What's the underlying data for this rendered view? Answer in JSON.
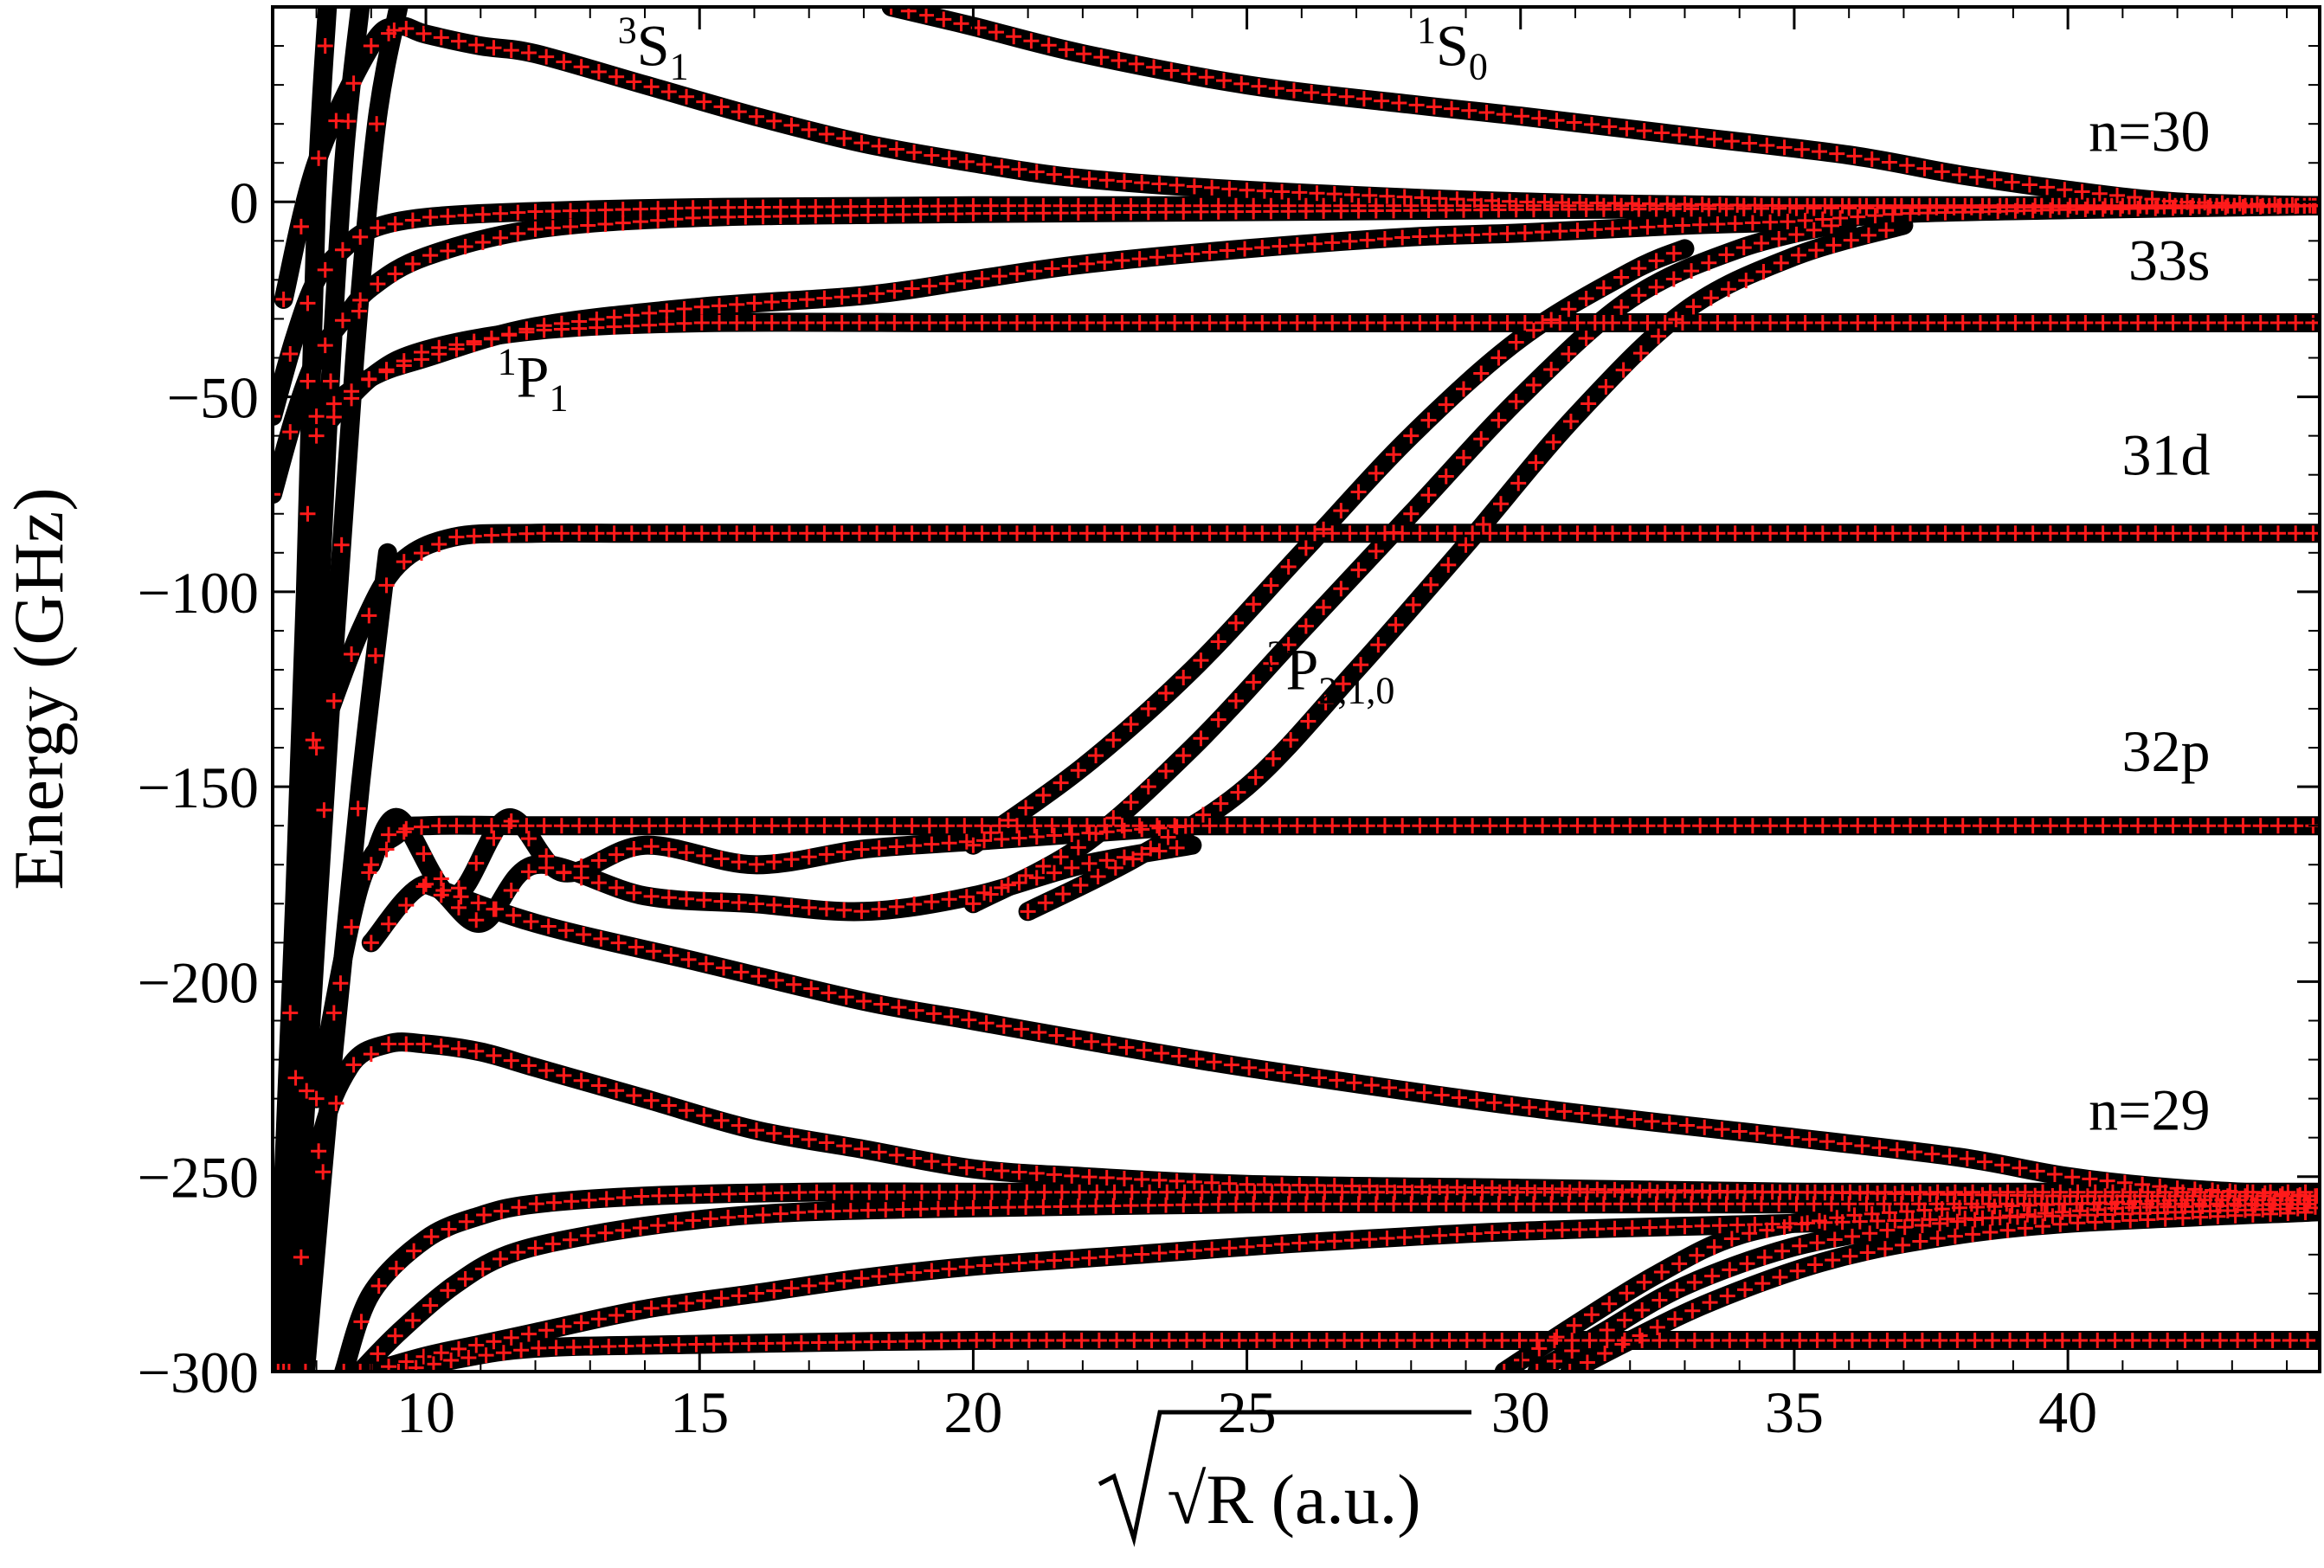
{
  "chart_data": {
    "type": "line",
    "xlabel": "√R (a.u.)",
    "ylabel": "Energy (GHz)",
    "xlim": [
      7.2,
      44.6
    ],
    "ylim": [
      -300,
      50
    ],
    "xticks": [
      10,
      15,
      20,
      25,
      30,
      35,
      40
    ],
    "yticks": [
      0,
      -50,
      -100,
      -150,
      -200,
      -250,
      -300
    ],
    "xtick_labels": [
      "10",
      "15",
      "20",
      "25",
      "30",
      "35",
      "40"
    ],
    "ytick_labels": [
      "0",
      "−50",
      "−100",
      "−150",
      "−200",
      "−250",
      "−300"
    ],
    "grid": false,
    "legend": "none",
    "colors": {
      "curve": "#000000",
      "marker": "#ff1a1a"
    },
    "annotations": [
      {
        "id": "3S1",
        "sup": "3",
        "main": "S",
        "sub": "1",
        "x": 14.8,
        "y": 35
      },
      {
        "id": "1S0",
        "sup": "1",
        "main": "S",
        "sub": "0",
        "x": 29.4,
        "y": 35
      },
      {
        "id": "1P1",
        "sup": "1",
        "main": "P",
        "sub": "1",
        "x": 12.6,
        "y": -50
      },
      {
        "id": "3P210",
        "sup": "3",
        "main": "P",
        "sub": "2,1,0",
        "x": 27.7,
        "y": -125
      },
      {
        "id": "n30",
        "main": "n=30",
        "x": 42.6,
        "y": 13
      },
      {
        "id": "33s",
        "main": "33s",
        "x": 42.6,
        "y": -20
      },
      {
        "id": "31d",
        "main": "31d",
        "x": 42.6,
        "y": -70
      },
      {
        "id": "32p",
        "main": "32p",
        "x": 42.6,
        "y": -146
      },
      {
        "id": "n29",
        "main": "n=29",
        "x": 42.6,
        "y": -238
      }
    ],
    "series": [
      {
        "x": [
          7.2,
          7.6,
          8.0,
          8.5,
          9.0,
          10.0,
          12.0,
          15.0,
          20.0,
          30.0,
          44.6
        ],
        "y": [
          -55,
          -35,
          -20,
          -12,
          -7,
          -4,
          -2.5,
          -1.5,
          -1,
          -1,
          -1
        ]
      },
      {
        "x": [
          7.2,
          7.6,
          8.0,
          8.5,
          9.0,
          10.0,
          12.0,
          15.0,
          20.0,
          30.0,
          44.6
        ],
        "y": [
          -75,
          -55,
          -40,
          -30,
          -22,
          -14,
          -7,
          -4,
          -3,
          -2,
          -1
        ]
      },
      {
        "x": [
          7.4,
          8.0,
          9.0,
          9.5,
          10.0,
          11.0,
          12.0,
          14.0,
          16.0,
          18.0,
          20.0,
          22.0,
          25.0,
          30.0,
          35.0,
          40.0,
          44.6
        ],
        "y": [
          -25,
          10,
          40,
          45,
          43,
          40,
          38,
          30,
          22,
          15,
          10,
          6,
          3,
          0,
          -1,
          -1,
          -1
        ]
      },
      {
        "x": [
          18.5,
          20.0,
          22.0,
          25.0,
          28.0,
          30.0,
          33.0,
          36.0,
          38.0,
          40.0,
          42.0,
          44.6
        ],
        "y": [
          50,
          45,
          38,
          30,
          25,
          22,
          17,
          12,
          7,
          3,
          0,
          -1
        ]
      },
      {
        "x": [
          8.0,
          9.0,
          10.0,
          12.0,
          15.0,
          18.0,
          20.0,
          22.0,
          25.0,
          28.0,
          30.0,
          33.0,
          35.0,
          37.0,
          40.0,
          44.6
        ],
        "y": [
          -55,
          -45,
          -40,
          -32,
          -27,
          -24,
          -20,
          -16,
          -12,
          -9,
          -8,
          -6,
          -5,
          -3,
          -2,
          -1
        ]
      },
      {
        "x": [
          8.0,
          9.0,
          10.0,
          12.0,
          15.0,
          20.0,
          25.0,
          30.0,
          35.0,
          40.0,
          44.6
        ],
        "y": [
          -60,
          -45,
          -38,
          -33,
          -31,
          -31,
          -31,
          -31,
          -31,
          -31,
          -31
        ]
      },
      {
        "x": [
          8.0,
          8.8,
          9.5,
          10.5,
          12.0,
          14.0,
          17.0,
          20.0,
          25.0,
          30.0,
          35.0,
          40.0,
          44.6
        ],
        "y": [
          -140,
          -110,
          -93,
          -86,
          -85,
          -85,
          -85,
          -85,
          -85,
          -85,
          -85,
          -85,
          -85
        ]
      },
      {
        "x": [
          20.0,
          22.0,
          24.0,
          26.0,
          28.0,
          30.0,
          32.0,
          33.0
        ],
        "y": [
          -165,
          -145,
          -120,
          -90,
          -60,
          -35,
          -18,
          -12
        ]
      },
      {
        "x": [
          20.0,
          22.0,
          24.0,
          26.0,
          28.0,
          30.0,
          32.0,
          34.0,
          36.0
        ],
        "y": [
          -180,
          -165,
          -140,
          -110,
          -80,
          -50,
          -25,
          -12,
          -5
        ]
      },
      {
        "x": [
          21.0,
          23.0,
          25.0,
          27.0,
          29.0,
          31.0,
          33.0,
          35.0,
          37.0
        ],
        "y": [
          -182,
          -168,
          -150,
          -120,
          -88,
          -55,
          -28,
          -14,
          -6
        ]
      },
      {
        "x": [
          8.0,
          8.8,
          9.5,
          10.0,
          12.0,
          15.0,
          20.0,
          25.0,
          30.0,
          35.0,
          40.0,
          44.6
        ],
        "y": [
          -230,
          -175,
          -162,
          -160,
          -160,
          -160,
          -160,
          -160,
          -160,
          -160,
          -160,
          -160
        ]
      },
      {
        "x": [
          9.0,
          9.5,
          10.5,
          11.5,
          12.5,
          14.0,
          16.0,
          18.0,
          20.0,
          22.0,
          24.0
        ],
        "y": [
          -170,
          -158,
          -178,
          -158,
          -172,
          -165,
          -170,
          -166,
          -164,
          -162,
          -160
        ]
      },
      {
        "x": [
          9.0,
          10.0,
          11.0,
          12.0,
          14.0,
          16.0,
          18.0,
          20.0,
          22.0,
          24.0
        ],
        "y": [
          -190,
          -175,
          -185,
          -170,
          -178,
          -180,
          -182,
          -178,
          -170,
          -165
        ]
      },
      {
        "x": [
          10.0,
          12.0,
          15.0,
          18.0,
          20.0,
          22.0,
          25.0,
          30.0,
          35.0,
          38.0,
          40.0,
          42.0,
          44.6
        ],
        "y": [
          -175,
          -185,
          -195,
          -205,
          -210,
          -215,
          -222,
          -232,
          -240,
          -245,
          -250,
          -253,
          -255
        ]
      },
      {
        "x": [
          7.4,
          8.0,
          8.6,
          9.3,
          10.0,
          11.0,
          12.0,
          14.0,
          16.0,
          18.0,
          20.0,
          22.0,
          25.0,
          30.0,
          35.0,
          40.0,
          44.6
        ],
        "y": [
          -300,
          -245,
          -222,
          -216,
          -216,
          -218,
          -222,
          -230,
          -238,
          -243,
          -248,
          -250,
          -252,
          -253,
          -254,
          -255,
          -255
        ]
      },
      {
        "x": [
          8.5,
          9.0,
          10.0,
          11.0,
          12.0,
          14.0,
          17.0,
          20.0,
          25.0,
          30.0,
          35.0,
          40.0,
          44.6
        ],
        "y": [
          -300,
          -280,
          -266,
          -260,
          -257,
          -255,
          -254,
          -254,
          -254,
          -254,
          -254,
          -254,
          -254
        ]
      },
      {
        "x": [
          8.8,
          9.5,
          10.5,
          11.5,
          13.0,
          15.0,
          17.0,
          20.0,
          25.0,
          30.0,
          35.0,
          40.0,
          44.6
        ],
        "y": [
          -300,
          -290,
          -278,
          -270,
          -265,
          -261,
          -259,
          -258,
          -257,
          -257,
          -257,
          -257,
          -257
        ]
      },
      {
        "x": [
          9.0,
          10.0,
          11.0,
          12.0,
          14.0,
          16.0,
          18.0,
          20.0,
          23.0,
          26.0,
          30.0,
          35.0,
          40.0,
          44.6
        ],
        "y": [
          -300,
          -296,
          -293,
          -290,
          -284,
          -280,
          -276,
          -273,
          -270,
          -267,
          -264,
          -262,
          -260,
          -258
        ]
      },
      {
        "x": [
          9.5,
          10.5,
          12.0,
          15.0,
          20.0,
          25.0,
          30.0,
          35.0,
          40.0,
          44.6
        ],
        "y": [
          -300,
          -297,
          -294,
          -293,
          -292,
          -292,
          -292,
          -292,
          -292,
          -292
        ]
      },
      {
        "x": [
          29.7,
          31.0,
          32.5,
          34.0,
          36.0,
          38.0,
          40.0,
          42.0,
          44.6
        ],
        "y": [
          -300,
          -288,
          -275,
          -265,
          -260,
          -258,
          -257,
          -256,
          -256
        ]
      },
      {
        "x": [
          30.3,
          31.5,
          33.0,
          35.0,
          37.0,
          39.0,
          41.0,
          44.6
        ],
        "y": [
          -300,
          -290,
          -278,
          -268,
          -263,
          -260,
          -258,
          -257
        ]
      },
      {
        "x": [
          30.9,
          32.0,
          33.5,
          35.5,
          37.5,
          40.0,
          44.6
        ],
        "y": [
          -300,
          -292,
          -282,
          -272,
          -266,
          -262,
          -259
        ]
      },
      {
        "x": [
          7.2,
          7.4,
          7.6,
          7.8,
          8.0,
          8.2
        ],
        "y": [
          -300,
          -250,
          -180,
          -100,
          0,
          50
        ]
      },
      {
        "x": [
          7.3,
          7.6,
          7.9,
          8.2,
          8.5,
          8.8
        ],
        "y": [
          -300,
          -230,
          -150,
          -60,
          10,
          50
        ]
      },
      {
        "x": [
          7.5,
          7.9,
          8.3,
          8.7,
          9.1,
          9.5
        ],
        "y": [
          -300,
          -210,
          -120,
          -40,
          20,
          50
        ]
      },
      {
        "x": [
          7.8,
          8.3,
          8.8,
          9.3
        ],
        "y": [
          -300,
          -220,
          -150,
          -90
        ]
      }
    ]
  }
}
